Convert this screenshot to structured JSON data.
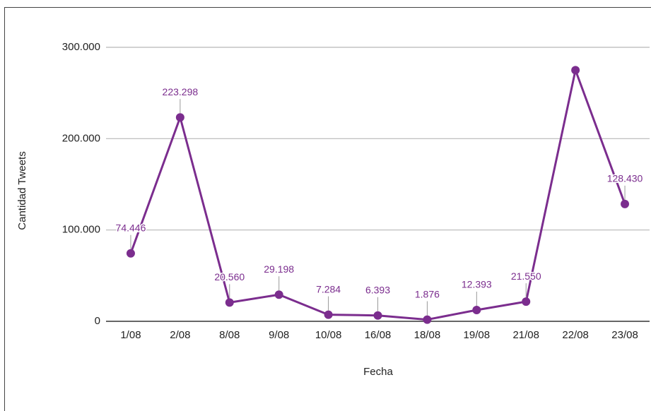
{
  "chart_data": {
    "type": "line",
    "x_label": "Fecha",
    "y_label": "Cantidad Tweets",
    "categories": [
      "1/08",
      "2/08",
      "8/08",
      "9/08",
      "10/08",
      "16/08",
      "18/08",
      "19/08",
      "21/08",
      "22/08",
      "23/08"
    ],
    "series": [
      {
        "name": "Cantidad Tweets",
        "color": "#7b2d8e",
        "values": [
          74446,
          223298,
          20560,
          29198,
          7284,
          6393,
          1876,
          12393,
          21550,
          275000,
          128430
        ],
        "value_labels": [
          "74.446",
          "223.298",
          "20.560",
          "29.198",
          "7.284",
          "6.393",
          "1.876",
          "12.393",
          "21.550",
          null,
          "128.430"
        ]
      }
    ],
    "ylim": [
      0,
      300000
    ],
    "yticks": [
      0,
      {
        "value": 100000,
        "label": "100.000"
      },
      {
        "value": 200000,
        "label": "200.000"
      },
      {
        "value": 300000,
        "label": "300.000"
      }
    ],
    "grid": true
  }
}
